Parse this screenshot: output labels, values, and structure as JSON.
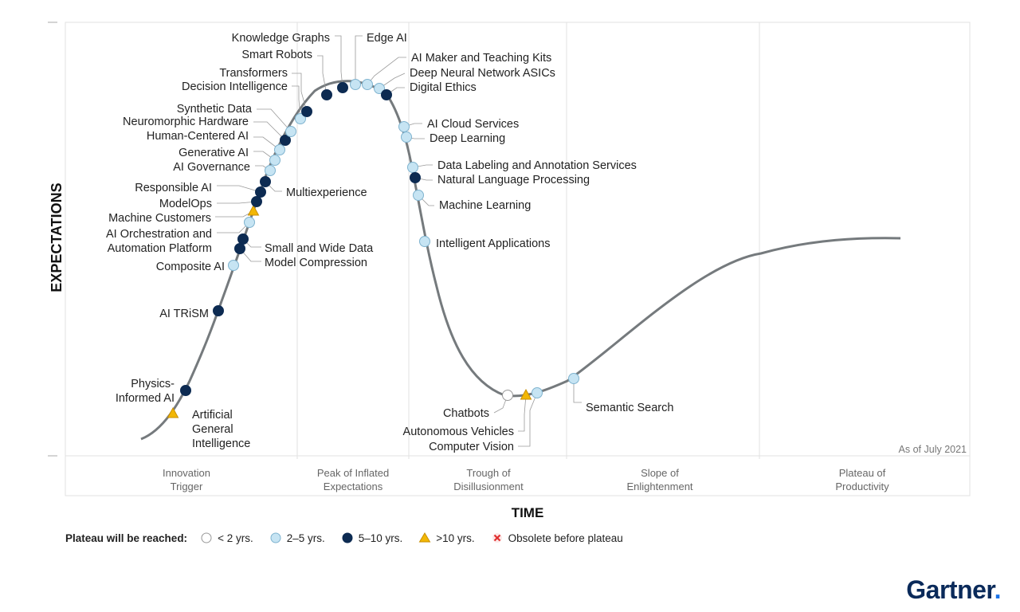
{
  "chart_data": {
    "type": "scatter",
    "title": "",
    "xlabel": "TIME",
    "ylabel": "EXPECTATIONS",
    "as_of": "As of July 2021",
    "grid": true,
    "phases": [
      {
        "key": "innovation",
        "line1": "Innovation",
        "line2": "Trigger"
      },
      {
        "key": "peak",
        "line1": "Peak of Inflated",
        "line2": "Expectations"
      },
      {
        "key": "trough",
        "line1": "Trough of",
        "line2": "Disillusionment"
      },
      {
        "key": "slope",
        "line1": "Slope of",
        "line2": "Enlightenment"
      },
      {
        "key": "plateau",
        "line1": "Plateau of",
        "line2": "Productivity"
      }
    ],
    "categories": {
      "lt2": {
        "label": "< 2 yrs.",
        "fill": "#ffffff",
        "stroke": "#9a9a9a",
        "shape": "circle"
      },
      "2to5": {
        "label": "2–5 yrs.",
        "fill": "#c6e4f3",
        "stroke": "#7fb3cf",
        "shape": "circle"
      },
      "5to10": {
        "label": "5–10 yrs.",
        "fill": "#0d2b52",
        "stroke": "#0d2b52",
        "shape": "circle"
      },
      "gt10": {
        "label": ">10 yrs.",
        "fill": "#f2b705",
        "stroke": "#c98f00",
        "shape": "triangle"
      },
      "obsolete": {
        "label": "Obsolete before plateau",
        "fill": "#e03030",
        "stroke": "#e03030",
        "shape": "x"
      }
    },
    "points": [
      {
        "name": "Artificial General Intelligence",
        "label_lines": [
          "Artificial",
          "General",
          "Intelligence"
        ],
        "category": "gt10",
        "phase": "Innovation Trigger"
      },
      {
        "name": "Physics-Informed AI",
        "label_lines": [
          "Physics-",
          "Informed AI"
        ],
        "category": "5to10",
        "phase": "Innovation Trigger"
      },
      {
        "name": "AI TRiSM",
        "label_lines": [
          "AI TRiSM"
        ],
        "category": "5to10",
        "phase": "Innovation Trigger"
      },
      {
        "name": "Composite AI",
        "label_lines": [
          "Composite AI"
        ],
        "category": "2to5",
        "phase": "Innovation Trigger"
      },
      {
        "name": "Model Compression",
        "label_lines": [
          "Model Compression"
        ],
        "category": "5to10",
        "phase": "Innovation Trigger"
      },
      {
        "name": "Small and Wide Data",
        "label_lines": [
          "Small and Wide Data"
        ],
        "category": "5to10",
        "phase": "Innovation Trigger"
      },
      {
        "name": "AI Orchestration and Automation Platform",
        "label_lines": [
          "AI Orchestration and",
          "Automation Platform"
        ],
        "category": "2to5",
        "phase": "Innovation Trigger"
      },
      {
        "name": "Machine Customers",
        "label_lines": [
          "Machine Customers"
        ],
        "category": "gt10",
        "phase": "Innovation Trigger"
      },
      {
        "name": "ModelOps",
        "label_lines": [
          "ModelOps"
        ],
        "category": "5to10",
        "phase": "Innovation Trigger"
      },
      {
        "name": "Responsible AI",
        "label_lines": [
          "Responsible AI"
        ],
        "category": "5to10",
        "phase": "Innovation Trigger"
      },
      {
        "name": "Multiexperience",
        "label_lines": [
          "Multiexperience"
        ],
        "category": "5to10",
        "phase": "Innovation Trigger"
      },
      {
        "name": "AI Governance",
        "label_lines": [
          "AI Governance"
        ],
        "category": "2to5",
        "phase": "Innovation Trigger"
      },
      {
        "name": "Generative AI",
        "label_lines": [
          "Generative AI"
        ],
        "category": "2to5",
        "phase": "Innovation Trigger"
      },
      {
        "name": "Human-Centered AI",
        "label_lines": [
          "Human-Centered AI"
        ],
        "category": "2to5",
        "phase": "Innovation Trigger"
      },
      {
        "name": "Neuromorphic Hardware",
        "label_lines": [
          "Neuromorphic Hardware"
        ],
        "category": "5to10",
        "phase": "Innovation Trigger"
      },
      {
        "name": "Synthetic Data",
        "label_lines": [
          "Synthetic Data"
        ],
        "category": "2to5",
        "phase": "Innovation Trigger"
      },
      {
        "name": "Decision Intelligence",
        "label_lines": [
          "Decision Intelligence"
        ],
        "category": "2to5",
        "phase": "Innovation Trigger"
      },
      {
        "name": "Transformers",
        "label_lines": [
          "Transformers"
        ],
        "category": "5to10",
        "phase": "Peak of Inflated Expectations"
      },
      {
        "name": "Smart Robots",
        "label_lines": [
          "Smart Robots"
        ],
        "category": "5to10",
        "phase": "Peak of Inflated Expectations"
      },
      {
        "name": "Knowledge Graphs",
        "label_lines": [
          "Knowledge Graphs"
        ],
        "category": "5to10",
        "phase": "Peak of Inflated Expectations"
      },
      {
        "name": "Edge AI",
        "label_lines": [
          "Edge AI"
        ],
        "category": "2to5",
        "phase": "Peak of Inflated Expectations"
      },
      {
        "name": "AI Maker and Teaching Kits",
        "label_lines": [
          "AI Maker and Teaching Kits"
        ],
        "category": "2to5",
        "phase": "Peak of Inflated Expectations"
      },
      {
        "name": "Deep Neural Network ASICs",
        "label_lines": [
          "Deep Neural Network ASICs"
        ],
        "category": "2to5",
        "phase": "Peak of Inflated Expectations"
      },
      {
        "name": "Digital Ethics",
        "label_lines": [
          "Digital Ethics"
        ],
        "category": "5to10",
        "phase": "Peak of Inflated Expectations"
      },
      {
        "name": "AI Cloud Services",
        "label_lines": [
          "AI Cloud Services"
        ],
        "category": "2to5",
        "phase": "Peak of Inflated Expectations"
      },
      {
        "name": "Deep Learning",
        "label_lines": [
          "Deep Learning"
        ],
        "category": "2to5",
        "phase": "Peak of Inflated Expectations"
      },
      {
        "name": "Data Labeling and Annotation Services",
        "label_lines": [
          "Data Labeling and Annotation Services"
        ],
        "category": "2to5",
        "phase": "Peak of Inflated Expectations"
      },
      {
        "name": "Natural Language Processing",
        "label_lines": [
          "Natural Language Processing"
        ],
        "category": "5to10",
        "phase": "Trough of Disillusionment"
      },
      {
        "name": "Machine Learning",
        "label_lines": [
          "Machine Learning"
        ],
        "category": "2to5",
        "phase": "Trough of Disillusionment"
      },
      {
        "name": "Intelligent Applications",
        "label_lines": [
          "Intelligent Applications"
        ],
        "category": "2to5",
        "phase": "Trough of Disillusionment"
      },
      {
        "name": "Chatbots",
        "label_lines": [
          "Chatbots"
        ],
        "category": "lt2",
        "phase": "Trough of Disillusionment"
      },
      {
        "name": "Autonomous Vehicles",
        "label_lines": [
          "Autonomous Vehicles"
        ],
        "category": "gt10",
        "phase": "Trough of Disillusionment"
      },
      {
        "name": "Computer Vision",
        "label_lines": [
          "Computer Vision"
        ],
        "category": "2to5",
        "phase": "Trough of Disillusionment"
      },
      {
        "name": "Semantic Search",
        "label_lines": [
          "Semantic Search"
        ],
        "category": "2to5",
        "phase": "Slope of Enlightenment"
      }
    ]
  },
  "legend": {
    "title": "Plateau will be reached:",
    "items": [
      {
        "key": "lt2",
        "label": "< 2 yrs."
      },
      {
        "key": "2to5",
        "label": "2–5 yrs."
      },
      {
        "key": "5to10",
        "label": "5–10 yrs."
      },
      {
        "key": "gt10",
        "label": ">10 yrs."
      },
      {
        "key": "obsolete",
        "label": "Obsolete before plateau"
      }
    ]
  },
  "brand": {
    "name": "Gartner",
    "dot": "."
  }
}
